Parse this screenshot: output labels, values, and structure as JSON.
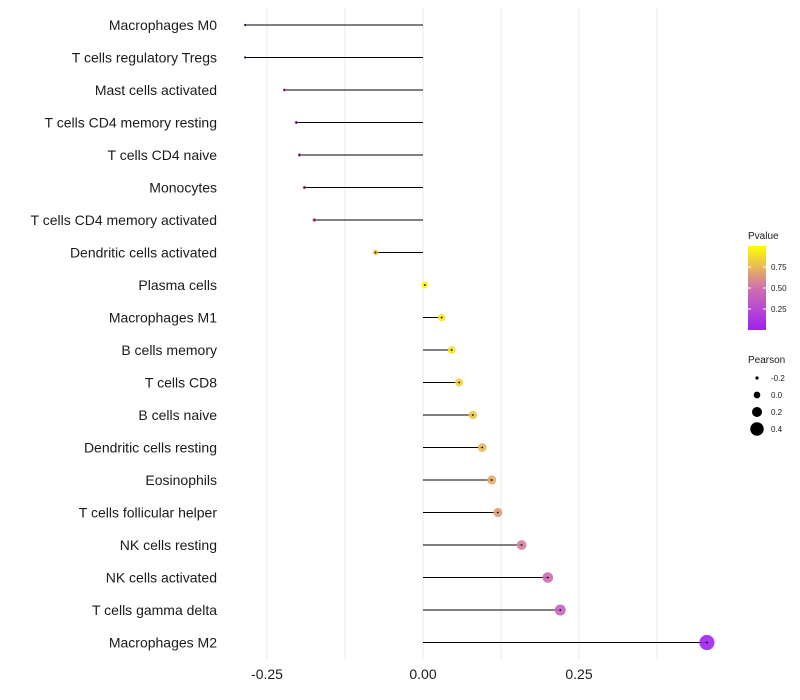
{
  "chart_data": {
    "type": "lollipop",
    "x_ticks": [
      -0.25,
      0.0,
      0.25
    ],
    "x_tick_labels": [
      "-0.25",
      "0.00",
      "0.25"
    ],
    "xlim": [
      -0.32,
      0.47
    ],
    "grid": true,
    "categories": [
      "Macrophages M0",
      "T cells regulatory  Tregs",
      "Mast cells activated",
      "T cells CD4 memory resting",
      "T cells CD4 naive",
      "Monocytes",
      "T cells CD4 memory activated",
      "Dendritic cells activated",
      "Plasma cells",
      "Macrophages M1",
      "B cells memory",
      "T cells CD8",
      "B cells naive",
      "Dendritic cells resting",
      "Eosinophils",
      "T cells follicular helper",
      "NK cells resting",
      "NK cells activated",
      "T cells gamma delta",
      "Macrophages M2"
    ],
    "values": [
      -0.285,
      -0.285,
      -0.222,
      -0.203,
      -0.198,
      -0.19,
      -0.174,
      -0.076,
      0.003,
      0.03,
      0.046,
      0.058,
      0.08,
      0.095,
      0.11,
      0.12,
      0.158,
      0.2,
      0.22,
      0.455
    ],
    "pvalues": [
      0.01,
      0.01,
      0.4,
      0.38,
      0.42,
      0.45,
      0.48,
      0.8,
      0.98,
      0.92,
      0.9,
      0.85,
      0.8,
      0.75,
      0.7,
      0.67,
      0.55,
      0.45,
      0.4,
      0.02
    ],
    "legend": {
      "color_title": "Pvalue",
      "color_ticks": [
        0.25,
        0.5,
        0.75
      ],
      "color_tick_labels": [
        "0.25",
        "0.50",
        "0.75"
      ],
      "color_range": [
        0.0,
        1.0
      ],
      "color_low": "#a020f0",
      "color_high": "#ffff00",
      "size_title": "Pearson",
      "size_values": [
        -0.2,
        0.0,
        0.2,
        0.4
      ],
      "size_labels": [
        "-0.2",
        "0.0",
        "0.2",
        "0.4"
      ],
      "placement": "right"
    }
  }
}
